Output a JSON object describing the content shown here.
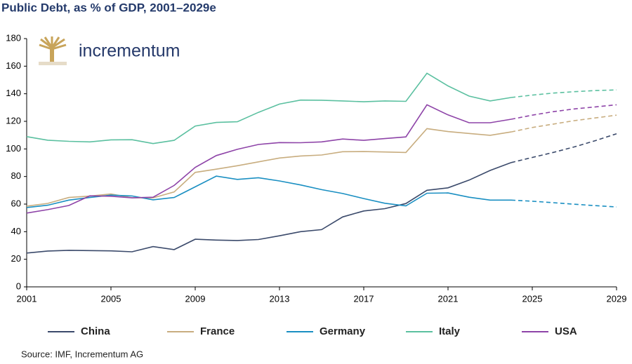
{
  "chart_data": {
    "type": "line",
    "title": "Public Debt, as % of GDP, 2001–2029e",
    "logo_text": "incrementum",
    "source": "Source: IMF, Incrementum AG",
    "x": [
      2001,
      2002,
      2003,
      2004,
      2005,
      2006,
      2007,
      2008,
      2009,
      2010,
      2011,
      2012,
      2013,
      2014,
      2015,
      2016,
      2017,
      2018,
      2019,
      2020,
      2021,
      2022,
      2023,
      2024,
      2025,
      2026,
      2027,
      2028,
      2029
    ],
    "xlim": [
      2001,
      2029
    ],
    "xticks": [
      2001,
      2005,
      2009,
      2013,
      2017,
      2021,
      2025,
      2029
    ],
    "ylim": [
      0,
      180
    ],
    "yticks": [
      0,
      20,
      40,
      60,
      80,
      100,
      120,
      140,
      160,
      180
    ],
    "dashed_from": 2024,
    "legend": "bottom",
    "series": [
      {
        "name": "China",
        "color": "#3b4a6b",
        "values": [
          24.5,
          26,
          26.5,
          26.3,
          26.1,
          25.4,
          29.2,
          27,
          34.5,
          33.9,
          33.6,
          34.3,
          37,
          40,
          41.5,
          50.7,
          55,
          56.7,
          60.4,
          70,
          71.8,
          77.4,
          84.4,
          90.1,
          93.8,
          97.5,
          101.5,
          106,
          111
        ]
      },
      {
        "name": "France",
        "color": "#c8ad7f",
        "values": [
          58.5,
          60.5,
          64.8,
          65.8,
          67.3,
          64.6,
          64.5,
          68.8,
          83,
          85.3,
          87.8,
          90.6,
          93.4,
          94.9,
          95.6,
          98,
          98.1,
          97.8,
          97.4,
          114.7,
          112.6,
          111.2,
          109.9,
          112.3,
          115.5,
          118,
          120.5,
          122.5,
          124.5
        ]
      },
      {
        "name": "Germany",
        "color": "#1a8fc2",
        "values": [
          57.5,
          59.2,
          62.9,
          64.8,
          66.5,
          65.9,
          63.1,
          64.8,
          72.5,
          80.3,
          77.9,
          79.1,
          76.8,
          73.9,
          70.5,
          67.7,
          64,
          60.6,
          58.7,
          67.9,
          68.1,
          65,
          62.9,
          62.9,
          62.1,
          61,
          59.9,
          58.9,
          57.9
        ]
      },
      {
        "name": "Italy",
        "color": "#5bc0a0",
        "values": [
          108.9,
          106.3,
          105.5,
          105.1,
          106.6,
          106.7,
          103.9,
          106.2,
          116.6,
          119.2,
          119.7,
          126.5,
          132.5,
          135.4,
          135.3,
          134.8,
          134.2,
          134.8,
          134.5,
          154.9,
          145.7,
          138.3,
          134.8,
          137.3,
          139,
          140.5,
          141.5,
          142.3,
          142.8
        ]
      },
      {
        "name": "USA",
        "color": "#8e44a8",
        "values": [
          53.5,
          56,
          59,
          66,
          65.7,
          64.5,
          65,
          73.5,
          86.6,
          95.2,
          99.7,
          103.2,
          104.6,
          104.5,
          105.1,
          107.2,
          106.2,
          107.5,
          108.7,
          132,
          124.7,
          119,
          119,
          121.5,
          124.5,
          127,
          129,
          130.5,
          132
        ]
      }
    ]
  }
}
